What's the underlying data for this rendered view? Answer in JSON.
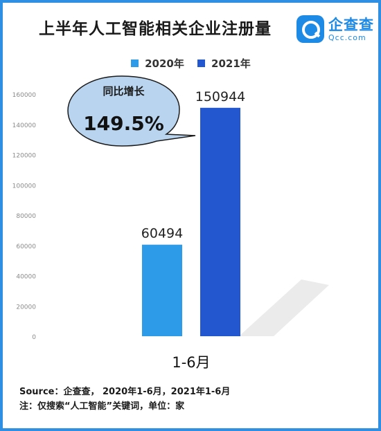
{
  "header": {
    "title": "上半年人工智能相关企业注册量"
  },
  "logo": {
    "name": "企查查",
    "domain": "Qcc.com",
    "color": "#1d8ae6"
  },
  "callout": {
    "label": "同比增长",
    "value": "149.5%"
  },
  "footer": {
    "source": "Source：企查查，  2020年1-6月，2021年1-6月",
    "note": "注：仅搜索“人工智能”关键词，单位：家"
  },
  "chart_data": {
    "type": "bar",
    "categories": [
      "1-6月"
    ],
    "series": [
      {
        "name": "2020年",
        "values": [
          60494
        ],
        "color": "#2e9be8"
      },
      {
        "name": "2021年",
        "values": [
          150944
        ],
        "color": "#2357d0"
      }
    ],
    "data_labels": [
      "60494",
      "150944"
    ],
    "yticks": [
      "0",
      "20000",
      "40000",
      "60000",
      "80000",
      "100000",
      "120000",
      "140000",
      "160000"
    ],
    "ylim": [
      0,
      160000
    ],
    "legend_position": "top",
    "grid": false
  }
}
